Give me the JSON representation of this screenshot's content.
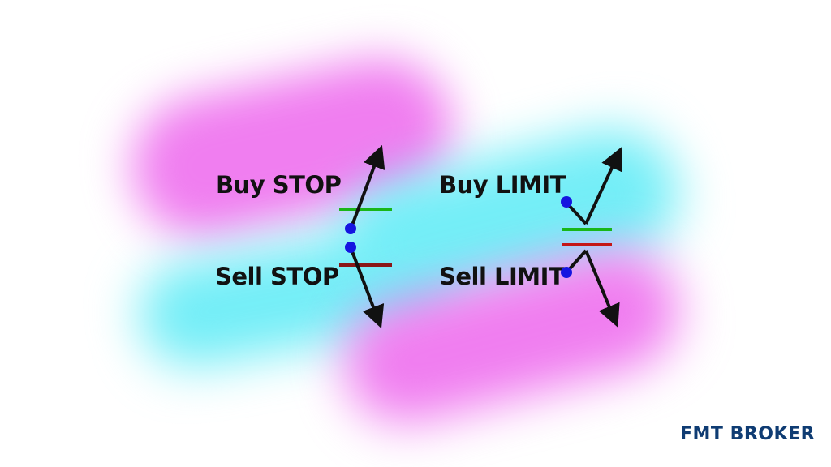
{
  "labels": {
    "buy_stop": "Buy STOP",
    "sell_stop": "Sell STOP",
    "buy_limit": "Buy LIMIT",
    "sell_limit": "Sell LIMIT"
  },
  "brand": {
    "name": "FMT BROKER"
  },
  "colors": {
    "pink": "#f07ef0",
    "cyan": "#74eef7",
    "buy_line": "#19b619",
    "sell_line": "#8a1717",
    "sell_limit_line": "#c41717",
    "dot": "#1515e0",
    "arrow": "#111111",
    "brand": "#0f3c73"
  }
}
